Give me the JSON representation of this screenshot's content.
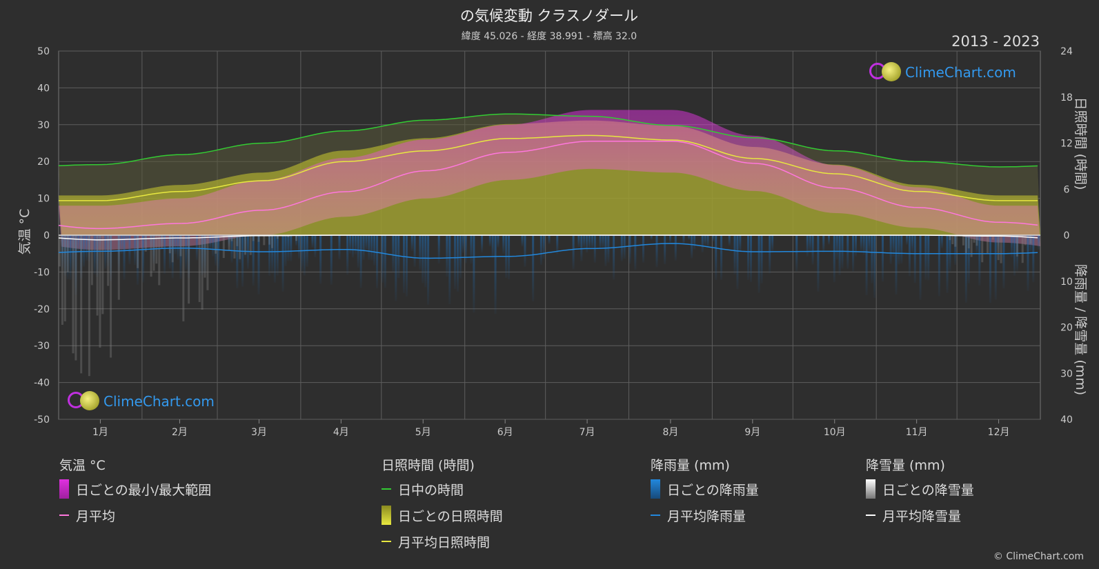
{
  "header": {
    "title": "の気候変動 クラスノダール",
    "subtitle": "緯度 45.026 - 経度 38.991 - 標高 32.0",
    "years": "2013 - 2023"
  },
  "branding": {
    "name": "ClimeChart.com",
    "copyright": "© ClimeChart.com"
  },
  "chart_data": {
    "type": "area",
    "categories": [
      "1月",
      "2月",
      "3月",
      "4月",
      "5月",
      "6月",
      "7月",
      "8月",
      "9月",
      "10月",
      "11月",
      "12月"
    ],
    "left_axis": {
      "label": "気温 °C",
      "range": [
        -50,
        50
      ],
      "ticks": [
        50,
        40,
        30,
        20,
        10,
        0,
        -10,
        -20,
        -30,
        -40,
        -50
      ]
    },
    "right_axis_top": {
      "label": "日照時間 (時間)",
      "range": [
        0,
        24
      ],
      "ticks": [
        24,
        18,
        12,
        6,
        0
      ]
    },
    "right_axis_bottom": {
      "label": "降雨量 / 降雪量 (mm)",
      "range": [
        0,
        40
      ],
      "ticks": [
        10,
        20,
        30,
        40
      ]
    },
    "series": [
      {
        "name": "日中の時間",
        "unit": "hours",
        "color": "#33cc33",
        "values": [
          9.2,
          10.5,
          12.0,
          13.6,
          15.0,
          15.8,
          15.5,
          14.3,
          12.7,
          11.0,
          9.6,
          8.9
        ]
      },
      {
        "name": "月平均日照時間",
        "unit": "hours",
        "color": "#e8e840",
        "values": [
          4.5,
          5.7,
          7.1,
          9.6,
          11.0,
          12.6,
          13.0,
          12.4,
          10.0,
          8.0,
          5.7,
          4.5
        ]
      },
      {
        "name": "月平均",
        "unit": "°C",
        "color": "#ff77dd",
        "values": [
          1.8,
          3.2,
          6.8,
          11.8,
          17.5,
          22.5,
          25.5,
          25.5,
          19.5,
          12.8,
          7.5,
          3.5
        ]
      },
      {
        "name": "月平均降雨量",
        "unit": "mm",
        "color": "#2288dd",
        "values": [
          3.5,
          2.8,
          3.6,
          3.1,
          5.0,
          4.6,
          2.9,
          1.8,
          3.6,
          3.5,
          4.0,
          4.0
        ]
      },
      {
        "name": "月平均降雪量",
        "unit": "mm",
        "color": "#ffffff",
        "values": [
          1.0,
          0.6,
          0.1,
          0,
          0,
          0,
          0,
          0,
          0,
          0,
          0,
          0.2
        ]
      }
    ],
    "daily_temperature_range": {
      "name": "日ごとの最小/最大範囲",
      "color": "#e040e0",
      "min": [
        -4,
        -3,
        0,
        5,
        10,
        15,
        18,
        17,
        12,
        6,
        2,
        -2
      ],
      "max": [
        8,
        10,
        15,
        21,
        26,
        30,
        34,
        34,
        27,
        19,
        13,
        8
      ]
    },
    "daily_sunshine": {
      "name": "ごとの日照時間",
      "color": "#b8b830"
    },
    "grid": true
  },
  "legend": {
    "temperature": {
      "title": "気温 °C",
      "range_label": "日ごとの最小/最大範囲",
      "avg_label": "月平均"
    },
    "sunshine": {
      "title": "日照時間 (時間)",
      "daylight_label": "日中の時間",
      "daily_label": "日ごとの日照時間",
      "avg_label": "月平均日照時間"
    },
    "rain": {
      "title": "降雨量 (mm)",
      "daily_label": "日ごとの降雨量",
      "avg_label": "月平均降雨量"
    },
    "snow": {
      "title": "降雪量 (mm)",
      "daily_label": "日ごとの降雪量",
      "avg_label": "月平均降雪量"
    }
  },
  "colors": {
    "background": "#2e2e2e",
    "grid": "#666666",
    "zero_line": "#dddddd"
  }
}
